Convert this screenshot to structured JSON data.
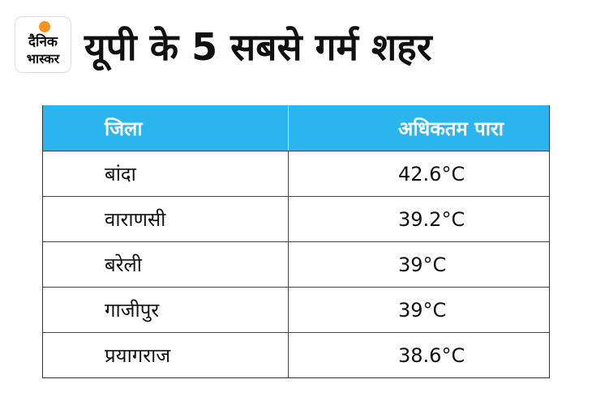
{
  "logo": {
    "line1": "दैनिक",
    "line2": "भास्कर"
  },
  "header": {
    "title": "यूपी के 5 सबसे गर्म शहर"
  },
  "table": {
    "columns": [
      "जिला",
      "अधिकतम पारा"
    ],
    "rows": [
      [
        "बांदा",
        "42.6°C"
      ],
      [
        "वाराणसी",
        "39.2°C"
      ],
      [
        "बरेली",
        "39°C"
      ],
      [
        "गाजीपुर",
        "39°C"
      ],
      [
        "प्रयागराज",
        "38.6°C"
      ]
    ]
  }
}
